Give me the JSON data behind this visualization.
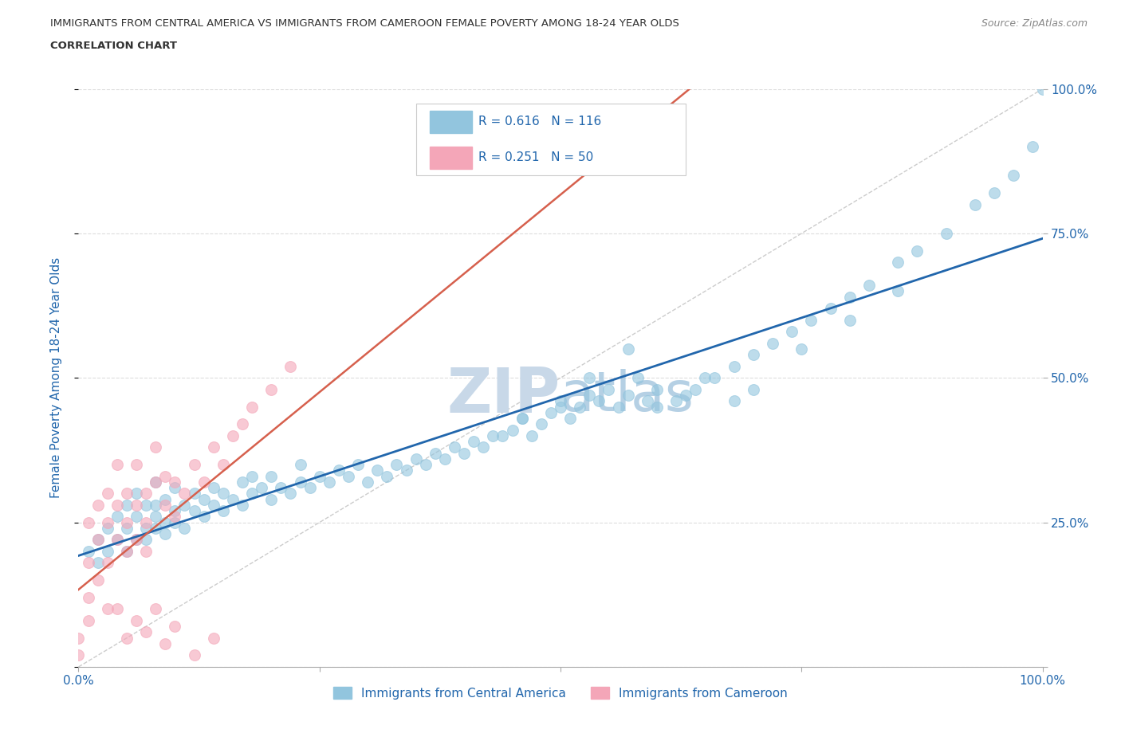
{
  "title_line1": "IMMIGRANTS FROM CENTRAL AMERICA VS IMMIGRANTS FROM CAMEROON FEMALE POVERTY AMONG 18-24 YEAR OLDS",
  "title_line2": "CORRELATION CHART",
  "source_text": "Source: ZipAtlas.com",
  "ylabel": "Female Poverty Among 18-24 Year Olds",
  "blue_label": "Immigrants from Central America",
  "pink_label": "Immigrants from Cameroon",
  "blue_R": 0.616,
  "blue_N": 116,
  "pink_R": 0.251,
  "pink_N": 50,
  "blue_color": "#92C5DE",
  "pink_color": "#F4A6B8",
  "blue_line_color": "#2166AC",
  "pink_line_color": "#D6604D",
  "ref_line_color": "#CCCCCC",
  "title_color": "#333333",
  "watermark_color": "#C8D8E8",
  "axis_label_color": "#2166AC",
  "tick_label_color": "#2166AC",
  "background_color": "#FFFFFF",
  "grid_color": "#DDDDDD",
  "blue_x": [
    0.01,
    0.02,
    0.02,
    0.03,
    0.03,
    0.04,
    0.04,
    0.05,
    0.05,
    0.05,
    0.06,
    0.06,
    0.06,
    0.07,
    0.07,
    0.07,
    0.08,
    0.08,
    0.08,
    0.08,
    0.09,
    0.09,
    0.09,
    0.1,
    0.1,
    0.1,
    0.11,
    0.11,
    0.12,
    0.12,
    0.13,
    0.13,
    0.14,
    0.14,
    0.15,
    0.15,
    0.16,
    0.17,
    0.17,
    0.18,
    0.18,
    0.19,
    0.2,
    0.2,
    0.21,
    0.22,
    0.23,
    0.23,
    0.24,
    0.25,
    0.26,
    0.27,
    0.28,
    0.29,
    0.3,
    0.31,
    0.32,
    0.33,
    0.34,
    0.35,
    0.36,
    0.37,
    0.38,
    0.39,
    0.4,
    0.41,
    0.42,
    0.43,
    0.45,
    0.46,
    0.47,
    0.48,
    0.49,
    0.5,
    0.51,
    0.52,
    0.53,
    0.54,
    0.55,
    0.56,
    0.57,
    0.58,
    0.59,
    0.6,
    0.62,
    0.64,
    0.66,
    0.68,
    0.7,
    0.72,
    0.74,
    0.76,
    0.78,
    0.8,
    0.82,
    0.85,
    0.87,
    0.9,
    0.93,
    0.95,
    0.97,
    0.99,
    1.0,
    0.5,
    0.53,
    0.57,
    0.44,
    0.46,
    0.6,
    0.63,
    0.65,
    0.68,
    0.7,
    0.75,
    0.8,
    0.85
  ],
  "blue_y": [
    0.2,
    0.22,
    0.18,
    0.2,
    0.24,
    0.22,
    0.26,
    0.2,
    0.24,
    0.28,
    0.22,
    0.26,
    0.3,
    0.24,
    0.28,
    0.22,
    0.26,
    0.24,
    0.28,
    0.32,
    0.25,
    0.29,
    0.23,
    0.27,
    0.31,
    0.25,
    0.28,
    0.24,
    0.27,
    0.3,
    0.26,
    0.29,
    0.28,
    0.31,
    0.27,
    0.3,
    0.29,
    0.28,
    0.32,
    0.3,
    0.33,
    0.31,
    0.29,
    0.33,
    0.31,
    0.3,
    0.32,
    0.35,
    0.31,
    0.33,
    0.32,
    0.34,
    0.33,
    0.35,
    0.32,
    0.34,
    0.33,
    0.35,
    0.34,
    0.36,
    0.35,
    0.37,
    0.36,
    0.38,
    0.37,
    0.39,
    0.38,
    0.4,
    0.41,
    0.43,
    0.4,
    0.42,
    0.44,
    0.46,
    0.43,
    0.45,
    0.47,
    0.46,
    0.48,
    0.45,
    0.47,
    0.5,
    0.46,
    0.48,
    0.46,
    0.48,
    0.5,
    0.52,
    0.54,
    0.56,
    0.58,
    0.6,
    0.62,
    0.64,
    0.66,
    0.7,
    0.72,
    0.75,
    0.8,
    0.82,
    0.85,
    0.9,
    1.0,
    0.45,
    0.5,
    0.55,
    0.4,
    0.43,
    0.45,
    0.47,
    0.5,
    0.46,
    0.48,
    0.55,
    0.6,
    0.65
  ],
  "pink_x": [
    0.0,
    0.0,
    0.01,
    0.01,
    0.01,
    0.01,
    0.02,
    0.02,
    0.02,
    0.03,
    0.03,
    0.03,
    0.03,
    0.04,
    0.04,
    0.04,
    0.04,
    0.05,
    0.05,
    0.05,
    0.06,
    0.06,
    0.06,
    0.07,
    0.07,
    0.07,
    0.08,
    0.08,
    0.09,
    0.09,
    0.1,
    0.1,
    0.11,
    0.12,
    0.13,
    0.14,
    0.15,
    0.16,
    0.17,
    0.18,
    0.2,
    0.22,
    0.05,
    0.06,
    0.07,
    0.08,
    0.09,
    0.1,
    0.12,
    0.14
  ],
  "pink_y": [
    0.02,
    0.05,
    0.08,
    0.12,
    0.18,
    0.25,
    0.15,
    0.22,
    0.28,
    0.18,
    0.25,
    0.3,
    0.1,
    0.22,
    0.28,
    0.35,
    0.1,
    0.25,
    0.3,
    0.2,
    0.28,
    0.22,
    0.35,
    0.3,
    0.25,
    0.2,
    0.32,
    0.38,
    0.28,
    0.33,
    0.26,
    0.32,
    0.3,
    0.35,
    0.32,
    0.38,
    0.35,
    0.4,
    0.42,
    0.45,
    0.48,
    0.52,
    0.05,
    0.08,
    0.06,
    0.1,
    0.04,
    0.07,
    0.02,
    0.05
  ],
  "blue_trend": [
    -0.15,
    0.75
  ],
  "pink_trend": [
    0.1,
    0.38
  ],
  "xlim": [
    0.0,
    1.0
  ],
  "ylim": [
    0.0,
    1.0
  ],
  "xticks": [
    0.0,
    0.25,
    0.5,
    0.75,
    1.0
  ],
  "yticks": [
    0.0,
    0.25,
    0.5,
    0.75,
    1.0
  ],
  "xtick_labels_bottom": [
    "0.0%",
    "",
    "",
    "",
    "100.0%"
  ],
  "ytick_labels_right": [
    "",
    "25.0%",
    "50.0%",
    "75.0%",
    "100.0%"
  ]
}
